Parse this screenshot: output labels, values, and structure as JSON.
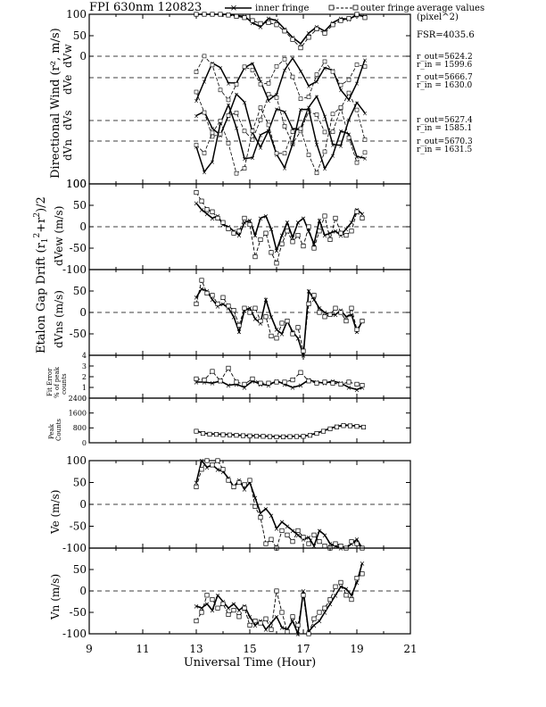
{
  "title": "FPI 630nm 120823",
  "legend": {
    "inner": "inner fringe",
    "outer": "outer fringe"
  },
  "side": {
    "heading1": "average values",
    "heading2": "(pixel^2)",
    "fsr": "FSR=4035.6",
    "ann": [
      {
        "a": "r_out=5624.2",
        "b": "r_in = 1599.6"
      },
      {
        "a": "r_out=5666.7",
        "b": "r_in = 1630.0"
      },
      {
        "a": "r_out=5627.4",
        "b": "r_in = 1585.1"
      },
      {
        "a": "r_out=5670.3",
        "b": "r_in = 1631.5"
      }
    ]
  },
  "xaxis": {
    "label": "Universal Time (Hour)",
    "ticks": [
      "9",
      "11",
      "13",
      "15",
      "17",
      "19",
      "21"
    ]
  },
  "chart_data": [
    {
      "type": "line",
      "id": "directional",
      "ylabel": "Directional Wind (r², m/s)",
      "ylim": [
        0,
        100
      ],
      "yticks": [
        "100",
        "50",
        "0",
        "",
        "",
        "",
        "",
        "",
        "100"
      ],
      "row_labels": [
        "dVw",
        "dVe",
        "dVs",
        "dVn"
      ],
      "series": [
        {
          "name": "inner fringe",
          "x": [
            13.0,
            13.3,
            13.6,
            13.9,
            14.2,
            14.5,
            14.8,
            15.1,
            15.4,
            15.7,
            16.0,
            16.3,
            16.6,
            16.9,
            17.2,
            17.5,
            17.8,
            18.1,
            18.4,
            18.7,
            19.0,
            19.3
          ],
          "y": [
            100,
            100,
            100,
            100,
            100,
            97,
            95,
            80,
            70,
            90,
            85,
            65,
            45,
            30,
            55,
            70,
            60,
            80,
            90,
            88,
            98,
            95
          ]
        },
        {
          "name": "outer fringe",
          "x": [
            13.0,
            13.3,
            13.6,
            13.9,
            14.2,
            14.5,
            14.8,
            15.1,
            15.4,
            15.7,
            16.0,
            16.3,
            16.6,
            16.9,
            17.2,
            17.5,
            17.8,
            18.1,
            18.4,
            18.7,
            19.0,
            19.3
          ],
          "y": [
            100,
            100,
            100,
            100,
            98,
            95,
            92,
            85,
            78,
            80,
            75,
            60,
            40,
            20,
            45,
            65,
            55,
            75,
            85,
            90,
            100,
            92
          ]
        }
      ]
    },
    {
      "type": "line",
      "id": "dvew",
      "ylabel": "dVew (m/s)",
      "ylim": [
        -100,
        100
      ],
      "series": [
        {
          "name": "inner fringe",
          "x": [
            13.0,
            13.2,
            13.4,
            13.6,
            13.8,
            14.0,
            14.2,
            14.4,
            14.6,
            14.8,
            15.0,
            15.2,
            15.4,
            15.6,
            15.8,
            16.0,
            16.2,
            16.4,
            16.6,
            16.8,
            17.0,
            17.2,
            17.4,
            17.6,
            17.8,
            18.0,
            18.2,
            18.4,
            18.6,
            18.8,
            19.0,
            19.2
          ],
          "y": [
            55,
            40,
            30,
            20,
            25,
            5,
            0,
            -10,
            -20,
            10,
            15,
            -20,
            20,
            25,
            -5,
            -55,
            -20,
            10,
            -25,
            10,
            20,
            -10,
            -40,
            15,
            -20,
            -15,
            -10,
            -20,
            -5,
            10,
            40,
            30
          ]
        },
        {
          "name": "outer fringe",
          "x": [
            13.0,
            13.2,
            13.4,
            13.6,
            13.8,
            14.0,
            14.2,
            14.4,
            14.6,
            14.8,
            15.0,
            15.2,
            15.4,
            15.6,
            15.8,
            16.0,
            16.2,
            16.4,
            16.6,
            16.8,
            17.0,
            17.2,
            17.4,
            17.6,
            17.8,
            18.0,
            18.2,
            18.4,
            18.6,
            18.8,
            19.0,
            19.2
          ],
          "y": [
            80,
            60,
            40,
            35,
            20,
            10,
            -5,
            -15,
            -10,
            20,
            5,
            -70,
            -30,
            -15,
            -60,
            -85,
            -40,
            -10,
            -35,
            -20,
            -45,
            0,
            -50,
            -10,
            25,
            -30,
            20,
            -15,
            -20,
            -10,
            35,
            20
          ]
        }
      ]
    },
    {
      "type": "line",
      "id": "dvns",
      "ylabel": "dVns (m/s)",
      "ylim": [
        -100,
        100
      ],
      "series": [
        {
          "name": "inner fringe",
          "x": [
            13.0,
            13.2,
            13.4,
            13.6,
            13.8,
            14.0,
            14.2,
            14.4,
            14.6,
            14.8,
            15.0,
            15.2,
            15.4,
            15.6,
            15.8,
            16.0,
            16.2,
            16.4,
            16.6,
            16.8,
            17.0,
            17.2,
            17.4,
            17.6,
            17.8,
            18.0,
            18.2,
            18.4,
            18.6,
            18.8,
            19.0,
            19.2
          ],
          "y": [
            35,
            55,
            50,
            30,
            15,
            20,
            10,
            -10,
            -45,
            5,
            10,
            -15,
            -25,
            30,
            -10,
            -40,
            -50,
            -20,
            -45,
            -60,
            -100,
            50,
            30,
            10,
            0,
            -5,
            -5,
            5,
            -10,
            -5,
            -45,
            -20
          ]
        },
        {
          "name": "outer fringe",
          "x": [
            13.0,
            13.2,
            13.4,
            13.6,
            13.8,
            14.0,
            14.2,
            14.4,
            14.6,
            14.8,
            15.0,
            15.2,
            15.4,
            15.6,
            15.8,
            16.0,
            16.2,
            16.4,
            16.6,
            16.8,
            17.0,
            17.2,
            17.4,
            17.6,
            17.8,
            18.0,
            18.2,
            18.4,
            18.6,
            18.8,
            19.0,
            19.2
          ],
          "y": [
            20,
            75,
            45,
            40,
            20,
            35,
            15,
            5,
            -30,
            10,
            0,
            10,
            -20,
            -10,
            -55,
            -60,
            -25,
            -20,
            -50,
            -35,
            -90,
            20,
            40,
            0,
            -10,
            -5,
            10,
            0,
            -20,
            10,
            -40,
            -20
          ]
        }
      ]
    },
    {
      "type": "line",
      "id": "fiterror",
      "ylabel": "Fit Error % of peak counts",
      "ylim": [
        0,
        4
      ],
      "yticks": [
        "0",
        "1",
        "2",
        "3",
        "4"
      ],
      "series": [
        {
          "name": "inner fringe",
          "x": [
            13.0,
            13.3,
            13.6,
            13.9,
            14.2,
            14.5,
            14.8,
            15.1,
            15.4,
            15.7,
            16.0,
            16.3,
            16.6,
            16.9,
            17.2,
            17.5,
            17.8,
            18.1,
            18.4,
            18.7,
            19.0,
            19.2
          ],
          "y": [
            1.5,
            1.5,
            1.4,
            1.6,
            1.2,
            1.3,
            1.0,
            1.6,
            1.3,
            1.2,
            1.6,
            1.3,
            1.0,
            1.2,
            1.7,
            1.5,
            1.4,
            1.6,
            1.4,
            1.0,
            0.8,
            1.0
          ]
        },
        {
          "name": "outer fringe",
          "x": [
            13.0,
            13.3,
            13.6,
            13.9,
            14.2,
            14.5,
            14.8,
            15.1,
            15.4,
            15.7,
            16.0,
            16.3,
            16.6,
            16.9,
            17.2,
            17.5,
            17.8,
            18.1,
            18.4,
            18.7,
            19.0,
            19.2
          ],
          "y": [
            1.8,
            1.7,
            2.5,
            1.6,
            2.8,
            1.5,
            1.3,
            1.8,
            1.4,
            1.4,
            1.5,
            1.5,
            1.7,
            2.4,
            1.6,
            1.4,
            1.5,
            1.4,
            1.3,
            1.5,
            1.3,
            1.2
          ]
        }
      ]
    },
    {
      "type": "line",
      "id": "peakcounts",
      "ylabel": "Peak Counts",
      "ylim": [
        0,
        2400
      ],
      "yticks": [
        "0",
        "800",
        "1600",
        "2400"
      ],
      "series": [
        {
          "name": "inner fringe",
          "x": [
            13.0,
            13.25,
            13.5,
            13.75,
            14.0,
            14.25,
            14.5,
            14.75,
            15.0,
            15.25,
            15.5,
            15.75,
            16.0,
            16.25,
            16.5,
            16.75,
            17.0,
            17.25,
            17.5,
            17.75,
            18.0,
            18.25,
            18.5,
            18.75,
            19.0,
            19.25
          ],
          "y": [
            650,
            520,
            480,
            470,
            450,
            440,
            420,
            400,
            390,
            370,
            360,
            350,
            330,
            340,
            345,
            350,
            360,
            420,
            520,
            650,
            780,
            880,
            950,
            940,
            900,
            860
          ]
        },
        {
          "name": "outer fringe",
          "x": [
            13.0,
            13.25,
            13.5,
            13.75,
            14.0,
            14.25,
            14.5,
            14.75,
            15.0,
            15.25,
            15.5,
            15.75,
            16.0,
            16.25,
            16.5,
            16.75,
            17.0,
            17.25,
            17.5,
            17.75,
            18.0,
            18.25,
            18.5,
            18.75,
            19.0,
            19.25
          ],
          "y": [
            620,
            500,
            460,
            450,
            430,
            420,
            400,
            380,
            370,
            355,
            345,
            330,
            315,
            320,
            330,
            335,
            345,
            400,
            500,
            620,
            750,
            850,
            920,
            910,
            880,
            840
          ]
        }
      ]
    },
    {
      "type": "line",
      "id": "ve",
      "ylabel": "Ve (m/s)",
      "ylim": [
        -100,
        100
      ],
      "series": [
        {
          "name": "inner fringe",
          "x": [
            13.0,
            13.2,
            13.4,
            13.6,
            13.8,
            14.0,
            14.2,
            14.4,
            14.6,
            14.8,
            15.0,
            15.2,
            15.4,
            15.6,
            15.8,
            16.0,
            16.2,
            16.4,
            16.6,
            16.8,
            17.0,
            17.2,
            17.4,
            17.6,
            17.8,
            18.0,
            18.2,
            18.4,
            18.6,
            18.8,
            19.0,
            19.2
          ],
          "y": [
            50,
            105,
            85,
            90,
            80,
            75,
            60,
            40,
            55,
            35,
            50,
            15,
            -20,
            -10,
            -25,
            -55,
            -40,
            -50,
            -60,
            -70,
            -80,
            -75,
            -95,
            -60,
            -70,
            -90,
            -95,
            -100,
            -100,
            -90,
            -80,
            -100
          ]
        },
        {
          "name": "outer fringe",
          "x": [
            13.0,
            13.2,
            13.4,
            13.6,
            13.8,
            14.0,
            14.2,
            14.4,
            14.6,
            14.8,
            15.0,
            15.2,
            15.4,
            15.6,
            15.8,
            16.0,
            16.2,
            16.4,
            16.6,
            16.8,
            17.0,
            17.2,
            17.4,
            17.6,
            17.8,
            18.0,
            18.2,
            18.4,
            18.6,
            18.8,
            19.0,
            19.2
          ],
          "y": [
            40,
            80,
            100,
            90,
            100,
            80,
            55,
            40,
            50,
            45,
            55,
            -5,
            -30,
            -90,
            -80,
            -100,
            -60,
            -70,
            -85,
            -60,
            -75,
            -90,
            -70,
            -85,
            -95,
            -100,
            -90,
            -95,
            -100,
            -85,
            -90,
            -100
          ]
        }
      ]
    },
    {
      "type": "line",
      "id": "vn",
      "ylabel": "Vn (m/s)",
      "ylim": [
        -100,
        100
      ],
      "series": [
        {
          "name": "inner fringe",
          "x": [
            13.0,
            13.2,
            13.4,
            13.6,
            13.8,
            14.0,
            14.2,
            14.4,
            14.6,
            14.8,
            15.0,
            15.2,
            15.4,
            15.6,
            15.8,
            16.0,
            16.2,
            16.4,
            16.6,
            16.8,
            17.0,
            17.2,
            17.4,
            17.6,
            17.8,
            18.0,
            18.2,
            18.4,
            18.6,
            18.8,
            19.0,
            19.2
          ],
          "y": [
            -35,
            -40,
            -30,
            -45,
            -10,
            -25,
            -40,
            -30,
            -45,
            -35,
            -60,
            -80,
            -70,
            -90,
            -75,
            -60,
            -85,
            -90,
            -70,
            -100,
            0,
            -95,
            -80,
            -70,
            -50,
            -30,
            -10,
            10,
            5,
            -10,
            20,
            65
          ]
        },
        {
          "name": "outer fringe",
          "x": [
            13.0,
            13.2,
            13.4,
            13.6,
            13.8,
            14.0,
            14.2,
            14.4,
            14.6,
            14.8,
            15.0,
            15.2,
            15.4,
            15.6,
            15.8,
            16.0,
            16.2,
            16.4,
            16.6,
            16.8,
            17.0,
            17.2,
            17.4,
            17.6,
            17.8,
            18.0,
            18.2,
            18.4,
            18.6,
            18.8,
            19.0,
            19.2
          ],
          "y": [
            -70,
            -50,
            -10,
            -20,
            -40,
            -30,
            -55,
            -45,
            -60,
            -40,
            -80,
            -70,
            -75,
            -65,
            -90,
            0,
            -50,
            -95,
            -60,
            -80,
            -10,
            -100,
            -65,
            -50,
            -40,
            -20,
            10,
            20,
            -10,
            -20,
            30,
            40
          ]
        }
      ]
    }
  ]
}
